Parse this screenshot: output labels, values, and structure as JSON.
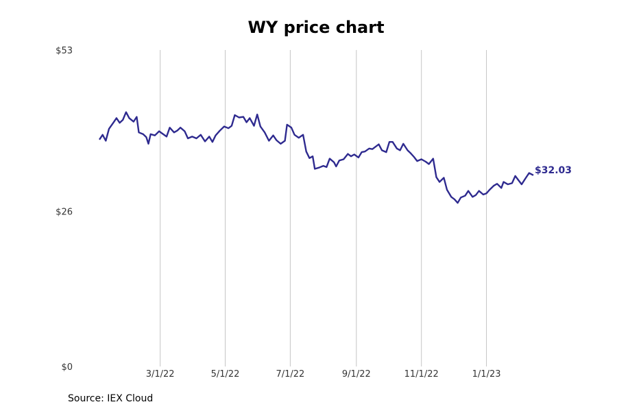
{
  "title": "WY price chart",
  "source": "Source: IEX Cloud",
  "colors": {
    "line": "#2e2a8f",
    "grid": "#c4c4c4",
    "text": "#333333"
  },
  "chart_data": {
    "type": "line",
    "title": "WY price chart",
    "ylim": [
      0,
      53
    ],
    "y_ticks": [
      {
        "value": 0,
        "label": "$0"
      },
      {
        "value": 26,
        "label": "$26"
      },
      {
        "value": 53,
        "label": "$53"
      }
    ],
    "xlim": [
      "2022-01-03",
      "2023-02-14"
    ],
    "x_ticks": [
      {
        "date": "2022-03-01",
        "label": "3/1/22"
      },
      {
        "date": "2022-05-01",
        "label": "5/1/22"
      },
      {
        "date": "2022-07-01",
        "label": "7/1/22"
      },
      {
        "date": "2022-09-01",
        "label": "9/1/22"
      },
      {
        "date": "2022-11-01",
        "label": "11/1/22"
      },
      {
        "date": "2023-01-01",
        "label": "1/1/23"
      }
    ],
    "grid": "vertical",
    "end_label": "$32.03",
    "series": [
      {
        "points": [
          [
            "2022-01-03",
            38.0
          ],
          [
            "2022-01-06",
            38.8
          ],
          [
            "2022-01-09",
            37.8
          ],
          [
            "2022-01-12",
            39.8
          ],
          [
            "2022-01-16",
            40.8
          ],
          [
            "2022-01-19",
            41.6
          ],
          [
            "2022-01-22",
            40.8
          ],
          [
            "2022-01-25",
            41.3
          ],
          [
            "2022-01-28",
            42.6
          ],
          [
            "2022-01-31",
            41.6
          ],
          [
            "2022-02-04",
            41.0
          ],
          [
            "2022-02-07",
            41.8
          ],
          [
            "2022-02-09",
            39.2
          ],
          [
            "2022-02-13",
            38.9
          ],
          [
            "2022-02-16",
            38.4
          ],
          [
            "2022-02-18",
            37.3
          ],
          [
            "2022-02-20",
            38.9
          ],
          [
            "2022-02-24",
            38.7
          ],
          [
            "2022-02-28",
            39.4
          ],
          [
            "2022-03-03",
            39.0
          ],
          [
            "2022-03-07",
            38.5
          ],
          [
            "2022-03-10",
            40.0
          ],
          [
            "2022-03-14",
            39.2
          ],
          [
            "2022-03-17",
            39.5
          ],
          [
            "2022-03-20",
            40.0
          ],
          [
            "2022-03-24",
            39.4
          ],
          [
            "2022-03-27",
            38.2
          ],
          [
            "2022-03-31",
            38.5
          ],
          [
            "2022-04-04",
            38.2
          ],
          [
            "2022-04-08",
            38.8
          ],
          [
            "2022-04-12",
            37.7
          ],
          [
            "2022-04-16",
            38.5
          ],
          [
            "2022-04-19",
            37.6
          ],
          [
            "2022-04-22",
            38.7
          ],
          [
            "2022-04-26",
            39.5
          ],
          [
            "2022-04-30",
            40.2
          ],
          [
            "2022-05-04",
            39.9
          ],
          [
            "2022-05-07",
            40.3
          ],
          [
            "2022-05-10",
            42.1
          ],
          [
            "2022-05-14",
            41.7
          ],
          [
            "2022-05-18",
            41.8
          ],
          [
            "2022-05-21",
            40.9
          ],
          [
            "2022-05-24",
            41.6
          ],
          [
            "2022-05-28",
            40.3
          ],
          [
            "2022-05-31",
            42.2
          ],
          [
            "2022-06-03",
            40.2
          ],
          [
            "2022-06-07",
            39.2
          ],
          [
            "2022-06-11",
            37.8
          ],
          [
            "2022-06-15",
            38.7
          ],
          [
            "2022-06-18",
            37.9
          ],
          [
            "2022-06-22",
            37.3
          ],
          [
            "2022-06-26",
            37.8
          ],
          [
            "2022-06-28",
            40.5
          ],
          [
            "2022-07-02",
            40.0
          ],
          [
            "2022-07-05",
            38.8
          ],
          [
            "2022-07-09",
            38.3
          ],
          [
            "2022-07-13",
            38.8
          ],
          [
            "2022-07-16",
            36.0
          ],
          [
            "2022-07-19",
            34.9
          ],
          [
            "2022-07-22",
            35.2
          ],
          [
            "2022-07-24",
            33.1
          ],
          [
            "2022-07-28",
            33.3
          ],
          [
            "2022-08-01",
            33.6
          ],
          [
            "2022-08-04",
            33.4
          ],
          [
            "2022-08-07",
            34.8
          ],
          [
            "2022-08-11",
            34.2
          ],
          [
            "2022-08-13",
            33.5
          ],
          [
            "2022-08-16",
            34.5
          ],
          [
            "2022-08-20",
            34.7
          ],
          [
            "2022-08-24",
            35.6
          ],
          [
            "2022-08-27",
            35.2
          ],
          [
            "2022-08-30",
            35.5
          ],
          [
            "2022-09-03",
            35.0
          ],
          [
            "2022-09-06",
            35.9
          ],
          [
            "2022-09-09",
            36.0
          ],
          [
            "2022-09-13",
            36.5
          ],
          [
            "2022-09-16",
            36.4
          ],
          [
            "2022-09-19",
            36.8
          ],
          [
            "2022-09-22",
            37.2
          ],
          [
            "2022-09-25",
            36.2
          ],
          [
            "2022-09-29",
            35.9
          ],
          [
            "2022-10-02",
            37.6
          ],
          [
            "2022-10-05",
            37.6
          ],
          [
            "2022-10-09",
            36.5
          ],
          [
            "2022-10-12",
            36.2
          ],
          [
            "2022-10-15",
            37.3
          ],
          [
            "2022-10-19",
            36.2
          ],
          [
            "2022-10-22",
            35.7
          ],
          [
            "2022-10-25",
            35.1
          ],
          [
            "2022-10-28",
            34.4
          ],
          [
            "2022-11-01",
            34.7
          ],
          [
            "2022-11-05",
            34.3
          ],
          [
            "2022-11-08",
            33.9
          ],
          [
            "2022-11-12",
            34.8
          ],
          [
            "2022-11-15",
            31.7
          ],
          [
            "2022-11-18",
            30.9
          ],
          [
            "2022-11-22",
            31.6
          ],
          [
            "2022-11-25",
            29.6
          ],
          [
            "2022-11-29",
            28.4
          ],
          [
            "2022-12-02",
            28.0
          ],
          [
            "2022-12-05",
            27.4
          ],
          [
            "2022-12-08",
            28.3
          ],
          [
            "2022-12-12",
            28.6
          ],
          [
            "2022-12-15",
            29.4
          ],
          [
            "2022-12-19",
            28.4
          ],
          [
            "2022-12-22",
            28.7
          ],
          [
            "2022-12-25",
            29.4
          ],
          [
            "2022-12-29",
            28.8
          ],
          [
            "2023-01-01",
            29.0
          ],
          [
            "2023-01-04",
            29.6
          ],
          [
            "2023-01-08",
            30.3
          ],
          [
            "2023-01-11",
            30.6
          ],
          [
            "2023-01-15",
            29.9
          ],
          [
            "2023-01-17",
            30.9
          ],
          [
            "2023-01-21",
            30.5
          ],
          [
            "2023-01-25",
            30.7
          ],
          [
            "2023-01-28",
            31.9
          ],
          [
            "2023-01-31",
            31.2
          ],
          [
            "2023-02-03",
            30.5
          ],
          [
            "2023-02-07",
            31.6
          ],
          [
            "2023-02-10",
            32.4
          ],
          [
            "2023-02-14",
            32.03
          ]
        ]
      }
    ]
  }
}
